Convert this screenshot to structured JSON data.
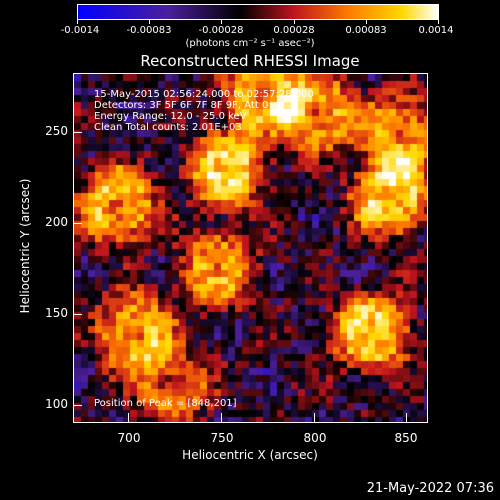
{
  "chart_data": {
    "type": "heatmap",
    "title": "Reconstructed RHESSI Image",
    "xlabel": "Heliocentric X (arcsec)",
    "ylabel": "Heliocentric Y (arcsec)",
    "xlim": [
      668,
      862
    ],
    "ylim": [
      89,
      280
    ],
    "x_ticks": [
      "700",
      "750",
      "800",
      "850"
    ],
    "x_tick_values": [
      700,
      750,
      800,
      850
    ],
    "y_ticks": [
      "100",
      "150",
      "200",
      "250"
    ],
    "y_tick_values": [
      100,
      150,
      200,
      250
    ],
    "colorbar": {
      "ticks": [
        "-0.0014",
        "-0.00083",
        "-0.00028",
        "0.00028",
        "0.00083",
        "0.0014"
      ],
      "range": [
        -0.0014,
        0.0014
      ],
      "units": "(photons cm⁻² s⁻¹ asec⁻²)",
      "colormap": [
        "#0000ff",
        "#4b1f9c",
        "#000000",
        "#c0141e",
        "#ff7a00",
        "#ffd800",
        "#ffffff"
      ]
    },
    "annotations": [
      "15-May-2015 02:56:24.000 to 02:57:28.000",
      "Detectors: 3F 5F 6F 7F 8F 9F, Att 0",
      "Energy Range: 12.0 - 25.0 keV",
      "Clean     Total counts: 2.01E+03"
    ],
    "peak_label": "Position of Peak = [848,201]",
    "peak": [
      848,
      201
    ]
  },
  "timestamp": "21-May-2022 07:36"
}
